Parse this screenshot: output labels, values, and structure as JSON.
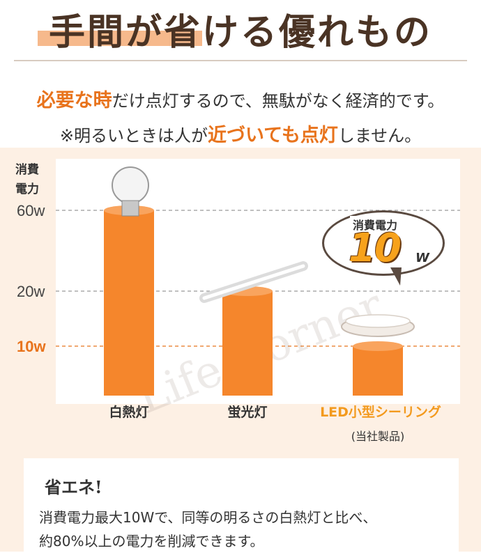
{
  "header": {
    "title": "手間が省ける優れもの"
  },
  "lead": {
    "line1_hot": "必要な時",
    "line1_rest": "だけ点灯するので、無駄がなく経済的です。",
    "line2_pre": "※明るいときは人が",
    "line2_hot1": "近づいても",
    "line2_hot2": "点灯",
    "line2_post": "しません。"
  },
  "chart_data": {
    "type": "bar",
    "ylabel": "消費電力",
    "unit": "W",
    "categories": [
      "白熱灯",
      "蛍光灯",
      "LED小型シーリング"
    ],
    "values": [
      60,
      20,
      10
    ],
    "ticks": [
      {
        "value": 60,
        "label": "60w"
      },
      {
        "value": 20,
        "label": "20w"
      },
      {
        "value": 10,
        "label": "10w"
      }
    ],
    "highlight_category": "LED小型シーリング",
    "highlight_sublabel": "(当社製品)",
    "callout": {
      "label": "消費電力",
      "value": "10",
      "unit": "W"
    },
    "watermark": "Life Corner",
    "colors": {
      "bar": "#f5862c",
      "highlight_text": "#f39a1e",
      "grid": "#999999",
      "highlight_grid": "#e8731c"
    }
  },
  "note": {
    "title": "省エネ!",
    "body_line1": "消費電力最大10Wで、同等の明るさの白熱灯と比べ、",
    "body_line2": "約80%以上の電力を削減できます。"
  }
}
